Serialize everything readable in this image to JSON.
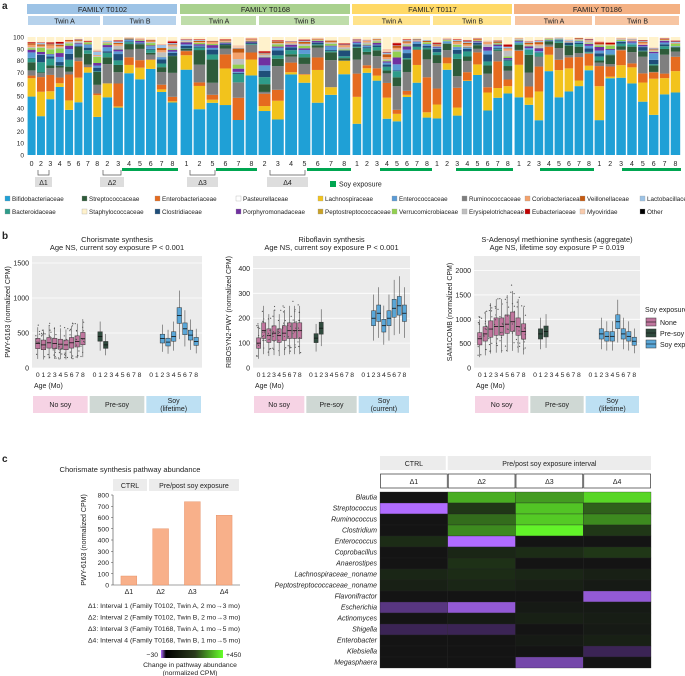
{
  "panel_a": {
    "letter": "a",
    "families": [
      {
        "name": "FAMILY T0102",
        "color": "#9dc3e6",
        "twins": [
          "Twin A",
          "Twin B"
        ]
      },
      {
        "name": "FAMILY T0168",
        "color": "#a9d18e",
        "twins": [
          "Twin A",
          "Twin B"
        ]
      },
      {
        "name": "FAMILY T0117",
        "color": "#ffd966",
        "twins": [
          "Twin A",
          "Twin B"
        ]
      },
      {
        "name": "FAMILY T0186",
        "color": "#f4b183",
        "twins": [
          "Twin A",
          "Twin B"
        ]
      }
    ],
    "yticks": [
      "0",
      "10",
      "20",
      "30",
      "40",
      "50",
      "60",
      "70",
      "80",
      "90",
      "100"
    ],
    "groups": [
      {
        "ticks": [
          "0",
          "2",
          "3",
          "4",
          "5",
          "6",
          "7",
          "8"
        ]
      },
      {
        "ticks": [
          "2",
          "3",
          "4",
          "5",
          "6",
          "7",
          "8"
        ]
      },
      {
        "ticks": [
          "1",
          "2",
          "5",
          "6",
          "7",
          "8"
        ]
      },
      {
        "ticks": [
          "2",
          "3",
          "4",
          "5",
          "6",
          "7",
          "8"
        ]
      },
      {
        "ticks": [
          "1",
          "2",
          "3",
          "4",
          "5",
          "6",
          "7",
          "8"
        ]
      },
      {
        "ticks": [
          "1",
          "2",
          "3",
          "4",
          "5",
          "6",
          "7",
          "8"
        ]
      },
      {
        "ticks": [
          "1",
          "2",
          "3",
          "4",
          "5",
          "6",
          "7",
          "8"
        ]
      },
      {
        "ticks": [
          "1",
          "2",
          "3",
          "4",
          "5",
          "6",
          "7",
          "8"
        ]
      }
    ],
    "intervals": [
      "Δ1",
      "Δ2",
      "Δ3",
      "Δ4"
    ],
    "soy_exposure_label": "Soy exposure",
    "legend": [
      {
        "name": "Bifidobacteriaceae",
        "color": "#1fa0d6"
      },
      {
        "name": "Streptococcaceae",
        "color": "#2e5b3a"
      },
      {
        "name": "Enterobacteriaceae",
        "color": "#e56b1f"
      },
      {
        "name": "Pasteurellaceae",
        "color": "#ffffff"
      },
      {
        "name": "Lachnospiraceae",
        "color": "#f2c31c"
      },
      {
        "name": "Enterococcaceae",
        "color": "#5b9bd5"
      },
      {
        "name": "Ruminococcaceae",
        "color": "#7f7f7f"
      },
      {
        "name": "Coriobacteriaceae",
        "color": "#f4a26b"
      },
      {
        "name": "Veillonellaceae",
        "color": "#c55a11"
      },
      {
        "name": "Lactobacillaceae",
        "color": "#9dc3e6"
      },
      {
        "name": "Bacteroidaceae",
        "color": "#2e9c8a"
      },
      {
        "name": "Staphylococcaceae",
        "color": "#fff2cc"
      },
      {
        "name": "Clostridiaceae",
        "color": "#1f4e79"
      },
      {
        "name": "Porphyromonadaceae",
        "color": "#7030a0"
      },
      {
        "name": "Peptostreptococcaceae",
        "color": "#c9a227"
      },
      {
        "name": "Verrucomicrobiaceae",
        "color": "#92d050"
      },
      {
        "name": "Erysipelotrichaceae",
        "color": "#bfbfbf"
      },
      {
        "name": "Eubacteriaceae",
        "color": "#c00000"
      },
      {
        "name": "Myoviridae",
        "color": "#f8cbad"
      },
      {
        "name": "Other",
        "color": "#000000"
      }
    ]
  },
  "panel_b": {
    "letter": "b",
    "y_label_left": "PWY-6163 (normalized CPM)",
    "y_label_mid": "RIBOSYN2-PWY (normalized CPM)",
    "y_label_right": "SAM1COMB (normalized CPM)",
    "age_label": "Age (Mo)",
    "age_ticks": [
      "0",
      "1",
      "2",
      "3",
      "4",
      "5",
      "6",
      "7",
      "8"
    ],
    "legend_title": "Soy exposure",
    "legend_items": [
      {
        "name": "None",
        "color": "#c0769e"
      },
      {
        "name": "Pre-soy",
        "color": "#2f4a3d"
      },
      {
        "name": "Soy exposed",
        "color": "#5aa7d8"
      }
    ]
  },
  "panel_c": {
    "letter": "c",
    "bar_title": "Chorismate synthesis pathway abundance",
    "ctrl_label": "CTRL",
    "prepost_label": "Pre/post soy exposure",
    "y_label": "PWY-6163 (normalized CPM)",
    "interval_notes": [
      "Δ1: Interval 1 (Family T0102, Twin A, 2 mo→3 mo)",
      "Δ2: Interval 2 (Family T0102, Twin B, 2 mo→3 mo)",
      "Δ3: Interval 3 (Family T0168, Twin A, 1 mo→5 mo)",
      "Δ4: Interval 4 (Family T0168, Twin B, 1 mo→5 mo)"
    ],
    "scale_min": "−30",
    "scale_max": "+450",
    "scale_label_1": "Change in pathway abundance",
    "scale_label_2": "(normalized CPM)",
    "heatmap_ctrl": "CTRL",
    "heatmap_interval_title": "Pre/post soy exposure interval",
    "heatmap_cols": [
      "Δ1",
      "Δ2",
      "Δ3",
      "Δ4"
    ],
    "heatmap_rows": [
      "Blautia",
      "Streptococcus",
      "Ruminococcus",
      "Clostridium",
      "Enterococcus",
      "Coprobacillus",
      "Anaerostipes",
      "Lachnospiraceae_noname",
      "Peptostreptococcaceae_noname",
      "Flavonifractor",
      "Escherichia",
      "Actinomyces",
      "Shigella",
      "Enterobacter",
      "Klebsiella",
      "Megasphaera"
    ]
  },
  "chart_data": [
    {
      "type": "bar",
      "title": "",
      "xlabel": "",
      "ylabel": "",
      "ylim": [
        0,
        100
      ],
      "note": "Stacked relative abundance of bacterial families per sample (percent)"
    },
    {
      "type": "box",
      "title": "Chorismate synthesis",
      "subtitle": "Age NS, current soy exposure P < 0.001",
      "ylabel": "PWY-6163 (normalized CPM)",
      "xlabel": "Age (Mo)",
      "ylim": [
        0,
        1600
      ],
      "yticks": [
        0,
        500,
        1000,
        1500
      ],
      "groups": [
        "No soy",
        "Pre-soy",
        "Soy (lifetime)"
      ],
      "medians": {
        "No soy": [
          350,
          330,
          360,
          350,
          340,
          330,
          360,
          380,
          420
        ],
        "Pre-soy": [
          450,
          330
        ],
        "Soy (lifetime)": [
          420,
          370,
          450,
          750,
          560,
          470,
          380
        ]
      }
    },
    {
      "type": "box",
      "title": "Riboflavin synthesis",
      "subtitle": "Age NS, current soy exposure P < 0.001",
      "ylabel": "RIBOSYN2-PWY (normalized CPM)",
      "xlabel": "Age (Mo)",
      "ylim": [
        0,
        450
      ],
      "yticks": [
        0,
        100,
        200,
        300,
        400
      ],
      "groups": [
        "No soy",
        "Pre-soy",
        "Soy (current)"
      ],
      "medians": {
        "No soy": [
          100,
          150,
          130,
          140,
          130,
          140,
          150,
          150,
          150
        ],
        "Pre-soy": [
          120,
          160
        ],
        "Soy (current)": [
          200,
          220,
          170,
          200,
          240,
          250,
          220
        ]
      }
    },
    {
      "type": "box",
      "title": "S-Adenosyl methionine synthesis (aggregate)",
      "subtitle": "Age NS, lifetime soy exposure P = 0.019",
      "ylabel": "SAM1COMB (normalized CPM)",
      "xlabel": "Age (Mo)",
      "ylim": [
        0,
        2300
      ],
      "yticks": [
        0,
        500,
        1000,
        1500,
        2000
      ],
      "groups": [
        "No soy",
        "Pre-soy",
        "Soy (lifetime)"
      ],
      "medians": {
        "No soy": [
          600,
          700,
          800,
          850,
          850,
          900,
          950,
          850,
          750
        ],
        "Pre-soy": [
          700,
          750
        ],
        "Soy (lifetime)": [
          700,
          650,
          650,
          950,
          700,
          650,
          550
        ]
      }
    },
    {
      "type": "bar",
      "title": "Chorismate synthesis pathway abundance",
      "ylabel": "PWY-6163 (normalized CPM)",
      "categories": [
        "Δ1",
        "Δ2",
        "Δ3",
        "Δ4"
      ],
      "values": [
        80,
        500,
        740,
        620
      ],
      "ylim": [
        0,
        800
      ],
      "yticks": [
        0,
        100,
        200,
        300,
        400,
        500,
        600,
        700,
        800
      ]
    },
    {
      "type": "heatmap",
      "title": "",
      "columns": [
        "Δ1",
        "Δ2",
        "Δ3",
        "Δ4"
      ],
      "rows": [
        "Blautia",
        "Streptococcus",
        "Ruminococcus",
        "Clostridium",
        "Enterococcus",
        "Coprobacillus",
        "Anaerostipes",
        "Lachnospiraceae_noname",
        "Peptostreptococcaceae_noname",
        "Flavonifractor",
        "Escherichia",
        "Actinomyces",
        "Shigella",
        "Enterobacter",
        "Klebsiella",
        "Megasphaera"
      ],
      "scale": [
        -30,
        450
      ],
      "values": [
        [
          0,
          260,
          230,
          330
        ],
        [
          -30,
          60,
          300,
          130
        ],
        [
          0,
          150,
          310,
          200
        ],
        [
          0,
          200,
          380,
          60
        ],
        [
          40,
          -30,
          0,
          0
        ],
        [
          0,
          30,
          40,
          60
        ],
        [
          0,
          50,
          0,
          0
        ],
        [
          30,
          40,
          30,
          20
        ],
        [
          20,
          30,
          20,
          10
        ],
        [
          0,
          0,
          0,
          -25
        ],
        [
          -15,
          -25,
          10,
          10
        ],
        [
          0,
          10,
          20,
          15
        ],
        [
          -10,
          -10,
          0,
          10
        ],
        [
          0,
          0,
          10,
          20
        ],
        [
          0,
          0,
          0,
          -10
        ],
        [
          0,
          0,
          -20,
          0
        ]
      ]
    }
  ]
}
